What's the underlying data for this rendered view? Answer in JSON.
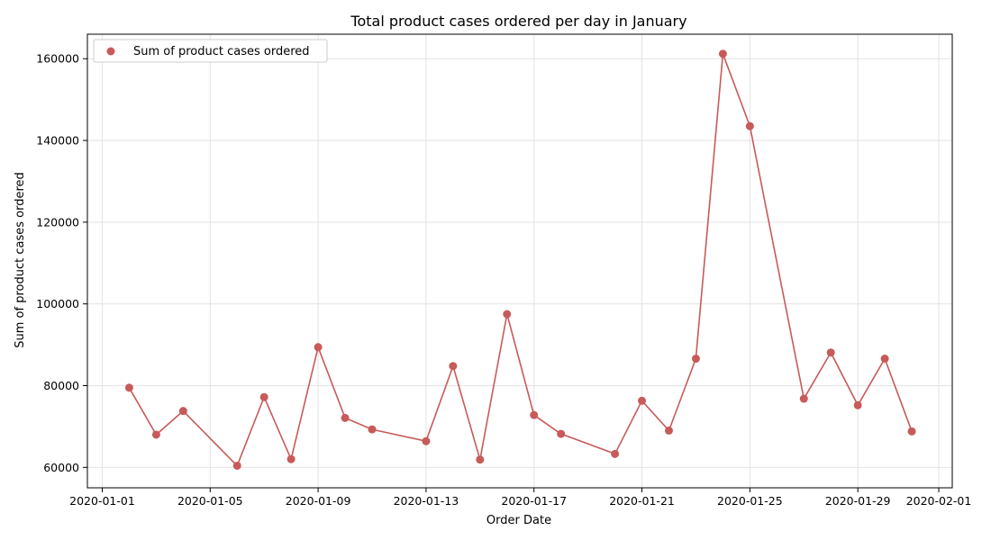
{
  "chart_data": {
    "type": "line",
    "title": "Total product cases ordered per day in January",
    "xlabel": "Order Date",
    "ylabel": "Sum of product cases ordered",
    "xlim": [
      "2020-01-01",
      "2020-02-01"
    ],
    "ylim": [
      55000,
      166000
    ],
    "x_ticks": [
      "2020-01-01",
      "2020-01-05",
      "2020-01-09",
      "2020-01-13",
      "2020-01-17",
      "2020-01-21",
      "2020-01-25",
      "2020-01-29",
      "2020-02-01"
    ],
    "y_ticks": [
      60000,
      80000,
      100000,
      120000,
      140000,
      160000
    ],
    "grid": true,
    "legend_position": "top-left",
    "series": [
      {
        "name": "Sum of product cases ordered",
        "color": "#c85a5a",
        "points": [
          {
            "x": "2020-01-02",
            "y": 79500
          },
          {
            "x": "2020-01-03",
            "y": 68000
          },
          {
            "x": "2020-01-04",
            "y": 73800
          },
          {
            "x": "2020-01-06",
            "y": 60400
          },
          {
            "x": "2020-01-07",
            "y": 77200
          },
          {
            "x": "2020-01-08",
            "y": 62000
          },
          {
            "x": "2020-01-09",
            "y": 89400
          },
          {
            "x": "2020-01-10",
            "y": 72100
          },
          {
            "x": "2020-01-11",
            "y": 69300
          },
          {
            "x": "2020-01-13",
            "y": 66400
          },
          {
            "x": "2020-01-14",
            "y": 84800
          },
          {
            "x": "2020-01-15",
            "y": 61900
          },
          {
            "x": "2020-01-16",
            "y": 97500
          },
          {
            "x": "2020-01-17",
            "y": 72800
          },
          {
            "x": "2020-01-18",
            "y": 68200
          },
          {
            "x": "2020-01-20",
            "y": 63300
          },
          {
            "x": "2020-01-21",
            "y": 76300
          },
          {
            "x": "2020-01-22",
            "y": 69000
          },
          {
            "x": "2020-01-23",
            "y": 86600
          },
          {
            "x": "2020-01-24",
            "y": 161200
          },
          {
            "x": "2020-01-25",
            "y": 143500
          },
          {
            "x": "2020-01-27",
            "y": 76800
          },
          {
            "x": "2020-01-28",
            "y": 88100
          },
          {
            "x": "2020-01-29",
            "y": 75200
          },
          {
            "x": "2020-01-30",
            "y": 86600
          },
          {
            "x": "2020-01-31",
            "y": 68800
          }
        ]
      }
    ]
  }
}
